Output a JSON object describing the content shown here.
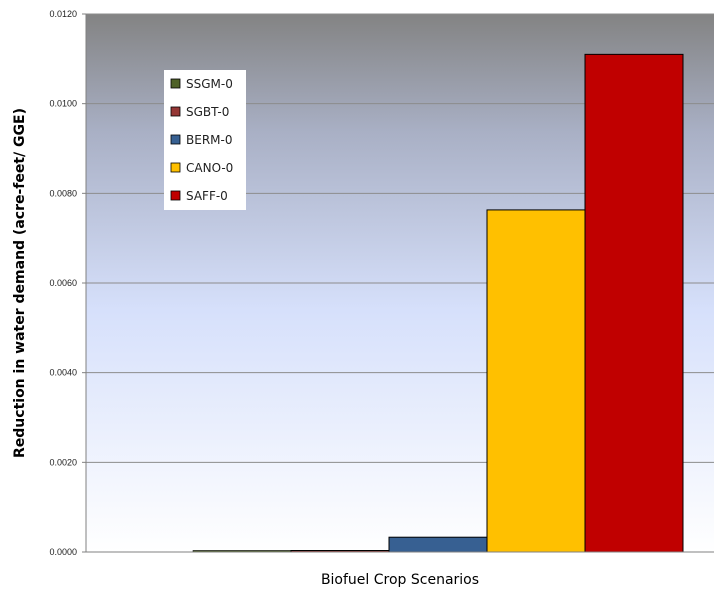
{
  "chart_data": {
    "type": "bar",
    "title": "",
    "xlabel": "Biofuel Crop Scenarios",
    "ylabel": "Reduction in water demand (acre-feet/ GGE)",
    "ylim": [
      0,
      0.012
    ],
    "yticks": [
      "0.0000",
      "0.0020",
      "0.0040",
      "0.0060",
      "0.0080",
      "0.0100",
      "0.0120"
    ],
    "ytick_values": [
      0,
      0.002,
      0.004,
      0.006,
      0.008,
      0.01,
      0.012
    ],
    "grid": true,
    "legend_position": "top-left",
    "series": [
      {
        "name": "SSGM-0",
        "value": 0.0,
        "color": "#4f6228"
      },
      {
        "name": "SGBT-0",
        "value": 3e-05,
        "color": "#953735"
      },
      {
        "name": "BERM-0",
        "value": 0.00033,
        "color": "#376092"
      },
      {
        "name": "CANO-0",
        "value": 0.00763,
        "color": "#ffc000"
      },
      {
        "name": "SAFF-0",
        "value": 0.0111,
        "color": "#c00000"
      }
    ]
  }
}
